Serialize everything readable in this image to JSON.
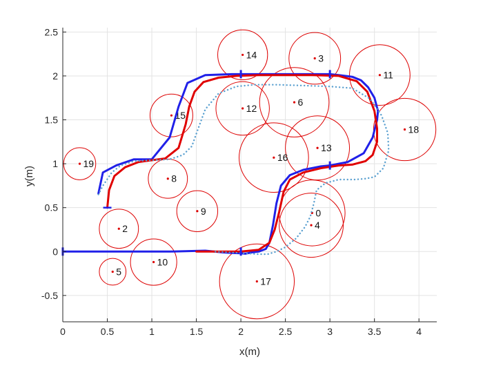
{
  "chart_data": {
    "type": "scatter",
    "xlabel": "x(m)",
    "ylabel": "y(m)",
    "xlim": [
      0,
      4.2
    ],
    "ylim": [
      -0.8,
      2.55
    ],
    "grid": true,
    "x_ticks": [
      0,
      0.5,
      1,
      1.5,
      2,
      2.5,
      3,
      3.5,
      4
    ],
    "y_ticks": [
      -0.5,
      0,
      0.5,
      1,
      1.5,
      2,
      2.5
    ],
    "x_tick_labels": [
      "0",
      "0.5",
      "1",
      "1.5",
      "2",
      "2.5",
      "3",
      "3.5",
      "4"
    ],
    "y_tick_labels": [
      "-0.5",
      "0",
      "0.5",
      "1",
      "1.5",
      "2",
      "2.5"
    ],
    "obstacle_color": "#dd0000",
    "obstacles": [
      {
        "label": "0",
        "x": 2.8,
        "y": 0.44,
        "r": 0.37
      },
      {
        "label": "2",
        "x": 0.63,
        "y": 0.26,
        "r": 0.22
      },
      {
        "label": "3",
        "x": 2.83,
        "y": 2.2,
        "r": 0.29
      },
      {
        "label": "4",
        "x": 2.79,
        "y": 0.3,
        "r": 0.36
      },
      {
        "label": "5",
        "x": 0.56,
        "y": -0.23,
        "r": 0.15
      },
      {
        "label": "6",
        "x": 2.6,
        "y": 1.7,
        "r": 0.39
      },
      {
        "label": "8",
        "x": 1.18,
        "y": 0.83,
        "r": 0.22
      },
      {
        "label": "9",
        "x": 1.51,
        "y": 0.46,
        "r": 0.23
      },
      {
        "label": "10",
        "x": 1.02,
        "y": -0.12,
        "r": 0.26
      },
      {
        "label": "11",
        "x": 3.56,
        "y": 2.01,
        "r": 0.34
      },
      {
        "label": "12",
        "x": 2.02,
        "y": 1.63,
        "r": 0.3
      },
      {
        "label": "13",
        "x": 2.86,
        "y": 1.18,
        "r": 0.36
      },
      {
        "label": "14",
        "x": 2.02,
        "y": 2.24,
        "r": 0.28
      },
      {
        "label": "15",
        "x": 1.22,
        "y": 1.55,
        "r": 0.24
      },
      {
        "label": "16",
        "x": 2.37,
        "y": 1.07,
        "r": 0.39
      },
      {
        "label": "17",
        "x": 2.18,
        "y": -0.34,
        "r": 0.42
      },
      {
        "label": "18",
        "x": 3.84,
        "y": 1.39,
        "r": 0.35
      },
      {
        "label": "19",
        "x": 0.19,
        "y": 1.0,
        "r": 0.18
      }
    ],
    "series": [
      {
        "color": "#2020e8",
        "width": 3,
        "style": "solid",
        "x": [
          0,
          0.4,
          0.8,
          1.2,
          1.6,
          1.8,
          1.9,
          2.0,
          2.05,
          2.12,
          2.2,
          2.28,
          2.32,
          2.36,
          2.4,
          2.45,
          2.55,
          2.7,
          2.9,
          3.0,
          3.2,
          3.38,
          3.48,
          3.53,
          3.54,
          3.5,
          3.43,
          3.35,
          3.25,
          3.1,
          3.0,
          2.9,
          2.75,
          2.65,
          2.6,
          2.5,
          2.45,
          2.4,
          2.36,
          2.32,
          2.2,
          2.05,
          1.9,
          1.6,
          1.4,
          1.3,
          1.2,
          1.0,
          0.8,
          0.6,
          0.45,
          0.4
        ],
        "y": [
          0,
          0,
          0,
          0,
          0.01,
          -0.01,
          -0.015,
          -0.02,
          -0.025,
          -0.01,
          0,
          0.03,
          0.1,
          0.3,
          0.55,
          0.75,
          0.87,
          0.93,
          0.97,
          0.98,
          1.02,
          1.12,
          1.3,
          1.5,
          1.6,
          1.75,
          1.87,
          1.95,
          1.99,
          2.01,
          2.02,
          2.02,
          2.02,
          2.02,
          2.02,
          2.02,
          2.02,
          2.02,
          2.02,
          2.02,
          2.02,
          2.02,
          2.02,
          2.01,
          1.92,
          1.65,
          1.3,
          1.05,
          1.05,
          0.98,
          0.9,
          0.66
        ]
      },
      {
        "color": "#e00000",
        "width": 3,
        "style": "solid",
        "x": [
          0.5,
          0.52,
          0.58,
          0.7,
          0.85,
          1.0,
          1.15,
          1.3,
          1.38,
          1.42,
          1.48,
          1.58,
          1.75,
          1.95,
          2.2,
          2.5,
          2.8,
          3.1,
          3.3,
          3.42,
          3.5,
          3.53,
          3.53,
          3.48,
          3.4,
          3.25,
          3.1,
          2.9,
          2.7,
          2.55,
          2.48,
          2.43,
          2.38,
          2.32,
          2.2,
          2.0,
          1.7,
          1.5
        ],
        "y": [
          0.5,
          0.7,
          0.86,
          0.96,
          1.02,
          1.04,
          1.06,
          1.18,
          1.45,
          1.65,
          1.82,
          1.93,
          1.98,
          2.0,
          2.01,
          2.01,
          2.01,
          2.0,
          1.94,
          1.82,
          1.6,
          1.4,
          1.25,
          1.1,
          1.03,
          0.99,
          0.98,
          0.95,
          0.9,
          0.82,
          0.68,
          0.45,
          0.25,
          0.1,
          0.02,
          0.0,
          0.0,
          0.0
        ]
      },
      {
        "color": "#5aa0d0",
        "width": 2.4,
        "style": "dotted",
        "x": [
          0.4,
          0.45,
          0.55,
          0.65,
          0.8,
          1.0,
          1.2,
          1.35,
          1.45,
          1.52,
          1.6,
          1.75,
          1.95,
          2.15,
          2.4,
          2.7,
          3.0,
          3.25,
          3.45,
          3.58,
          3.65,
          3.66,
          3.6,
          3.5,
          3.4,
          3.28,
          3.1,
          2.95,
          2.85,
          2.82,
          2.78,
          2.72,
          2.62,
          2.5,
          2.4,
          2.3,
          2.2,
          2.05,
          1.9,
          1.7
        ],
        "y": [
          0.65,
          0.75,
          0.9,
          0.98,
          1.03,
          1.04,
          1.05,
          1.1,
          1.2,
          1.4,
          1.62,
          1.8,
          1.88,
          1.9,
          1.9,
          1.89,
          1.88,
          1.86,
          1.74,
          1.55,
          1.35,
          1.15,
          0.95,
          0.85,
          0.83,
          0.82,
          0.82,
          0.78,
          0.7,
          0.55,
          0.4,
          0.28,
          0.15,
          0.05,
          0.0,
          -0.03,
          -0.03,
          -0.02,
          -0.01,
          0.0
        ]
      }
    ],
    "markers": [
      {
        "x": 0.5,
        "y": 0.5,
        "orient": "h",
        "color": "#2020e8"
      },
      {
        "x": 0.0,
        "y": 0.0,
        "orient": "v",
        "color": "#2020e8"
      },
      {
        "x": 2.0,
        "y": 0.0,
        "orient": "v",
        "color": "#2020e8"
      },
      {
        "x": 2.0,
        "y": 2.02,
        "orient": "v",
        "color": "#2020e8"
      },
      {
        "x": 3.0,
        "y": 2.02,
        "orient": "v",
        "color": "#2020e8"
      },
      {
        "x": 3.0,
        "y": 0.98,
        "orient": "v",
        "color": "#2020e8"
      }
    ]
  }
}
